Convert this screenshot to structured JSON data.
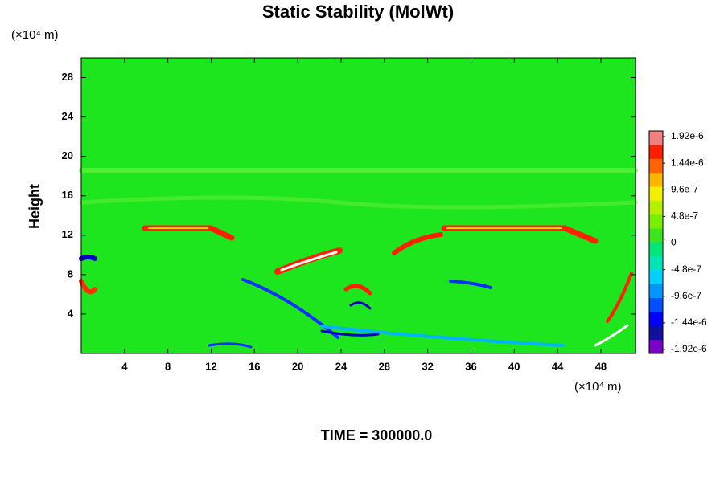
{
  "chart_data": {
    "type": "contour",
    "title": "Static Stability (MolWt)",
    "y_unit": "(×10⁴ m)",
    "x_unit": "(×10⁴ m)",
    "ylabel": "Height",
    "footer": "TIME = 300000.0",
    "xlim": [
      0,
      51.2
    ],
    "ylim": [
      0,
      30
    ],
    "xticks": [
      4,
      8,
      12,
      16,
      20,
      24,
      28,
      32,
      36,
      40,
      44,
      48
    ],
    "yticks": [
      4,
      8,
      12,
      16,
      20,
      24,
      28
    ],
    "background_color": "#1ee61e",
    "colorbar": {
      "colors": [
        "#7a00c8",
        "#1010a0",
        "#0000ff",
        "#0050ff",
        "#0096ff",
        "#00d2ff",
        "#00e6b4",
        "#00e678",
        "#3ce61e",
        "#78f000",
        "#b4f000",
        "#f0f000",
        "#ffb400",
        "#ff6400",
        "#ff1e00",
        "#f08080"
      ],
      "clim": [
        -1.92e-06,
        1.92e-06
      ],
      "ticks": [
        {
          "value": 1.92e-06,
          "label": "1.92e-6"
        },
        {
          "value": 1.44e-06,
          "label": "1.44e-6"
        },
        {
          "value": 9.6e-07,
          "label": "9.6e-7"
        },
        {
          "value": 4.8e-07,
          "label": "4.8e-7"
        },
        0,
        {
          "value": -4.8e-07,
          "label": "-4.8e-7"
        },
        {
          "value": -9.6e-07,
          "label": "-9.6e-7"
        },
        {
          "value": -1.44e-06,
          "label": "-1.44e-6"
        },
        {
          "value": -1.92e-06,
          "label": "-1.92e-6"
        }
      ]
    }
  }
}
